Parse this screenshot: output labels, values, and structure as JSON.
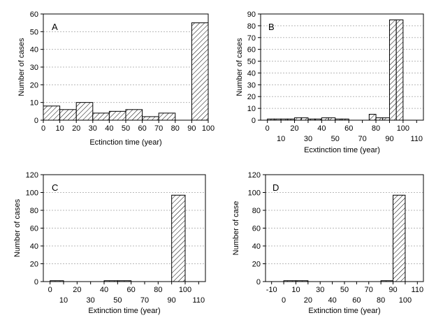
{
  "chart_data": [
    {
      "type": "bar",
      "panel_label": "A",
      "xlabel": "Ectinction time (year)",
      "ylabel": "Number of cases",
      "xlim": [
        0,
        100
      ],
      "ylim": [
        0,
        60
      ],
      "yticks": [
        0,
        10,
        20,
        30,
        40,
        50,
        60
      ],
      "xticks": [
        {
          "value": 0,
          "label": "0",
          "row": 0
        },
        {
          "value": 10,
          "label": "10",
          "row": 0
        },
        {
          "value": 20,
          "label": "20",
          "row": 0
        },
        {
          "value": 30,
          "label": "30",
          "row": 0
        },
        {
          "value": 40,
          "label": "40",
          "row": 0
        },
        {
          "value": 50,
          "label": "50",
          "row": 0
        },
        {
          "value": 60,
          "label": "60",
          "row": 0
        },
        {
          "value": 70,
          "label": "70",
          "row": 0
        },
        {
          "value": 80,
          "label": "80",
          "row": 0
        },
        {
          "value": 90,
          "label": "90",
          "row": 0
        },
        {
          "value": 100,
          "label": "100",
          "row": 0
        }
      ],
      "bins": [
        {
          "start": 0,
          "end": 10,
          "value": 8
        },
        {
          "start": 10,
          "end": 20,
          "value": 6
        },
        {
          "start": 20,
          "end": 30,
          "value": 10
        },
        {
          "start": 30,
          "end": 40,
          "value": 4
        },
        {
          "start": 40,
          "end": 50,
          "value": 5
        },
        {
          "start": 50,
          "end": 60,
          "value": 6
        },
        {
          "start": 60,
          "end": 70,
          "value": 2
        },
        {
          "start": 70,
          "end": 80,
          "value": 4
        },
        {
          "start": 80,
          "end": 90,
          "value": 0
        },
        {
          "start": 90,
          "end": 100,
          "value": 55
        }
      ],
      "grid": true
    },
    {
      "type": "bar",
      "panel_label": "B",
      "xlabel": "Ecxtinction time (year)",
      "ylabel": "Number of cases",
      "xlim": [
        -5,
        115
      ],
      "ylim": [
        0,
        90
      ],
      "yticks": [
        0,
        10,
        20,
        30,
        40,
        50,
        60,
        70,
        80,
        90
      ],
      "xticks": [
        {
          "value": 0,
          "label": "0",
          "row": 0
        },
        {
          "value": 10,
          "label": "10",
          "row": 1
        },
        {
          "value": 20,
          "label": "20",
          "row": 0
        },
        {
          "value": 30,
          "label": "30",
          "row": 1
        },
        {
          "value": 40,
          "label": "40",
          "row": 0
        },
        {
          "value": 50,
          "label": "50",
          "row": 1
        },
        {
          "value": 60,
          "label": "60",
          "row": 0
        },
        {
          "value": 70,
          "label": "70",
          "row": 1
        },
        {
          "value": 80,
          "label": "80",
          "row": 0
        },
        {
          "value": 90,
          "label": "90",
          "row": 1
        },
        {
          "value": 100,
          "label": "100",
          "row": 0
        },
        {
          "value": 110,
          "label": "110",
          "row": 1
        }
      ],
      "bins": [
        {
          "start": 0,
          "end": 5,
          "value": 1
        },
        {
          "start": 5,
          "end": 10,
          "value": 1
        },
        {
          "start": 10,
          "end": 15,
          "value": 1
        },
        {
          "start": 15,
          "end": 20,
          "value": 1
        },
        {
          "start": 20,
          "end": 25,
          "value": 2
        },
        {
          "start": 25,
          "end": 30,
          "value": 2
        },
        {
          "start": 30,
          "end": 35,
          "value": 1
        },
        {
          "start": 35,
          "end": 40,
          "value": 1
        },
        {
          "start": 40,
          "end": 45,
          "value": 2
        },
        {
          "start": 45,
          "end": 50,
          "value": 2
        },
        {
          "start": 50,
          "end": 55,
          "value": 1
        },
        {
          "start": 55,
          "end": 60,
          "value": 1
        },
        {
          "start": 60,
          "end": 65,
          "value": 0
        },
        {
          "start": 65,
          "end": 70,
          "value": 0
        },
        {
          "start": 70,
          "end": 75,
          "value": 0
        },
        {
          "start": 75,
          "end": 80,
          "value": 5
        },
        {
          "start": 80,
          "end": 85,
          "value": 2
        },
        {
          "start": 85,
          "end": 90,
          "value": 2
        },
        {
          "start": 90,
          "end": 95,
          "value": 85
        },
        {
          "start": 95,
          "end": 100,
          "value": 85
        }
      ],
      "grid": true
    },
    {
      "type": "bar",
      "panel_label": "C",
      "xlabel": "Extinction time (year)",
      "ylabel": "Number of cases",
      "xlim": [
        -5,
        115
      ],
      "ylim": [
        0,
        120
      ],
      "yticks": [
        0,
        20,
        40,
        60,
        80,
        100,
        120
      ],
      "xticks": [
        {
          "value": 0,
          "label": "0",
          "row": 0
        },
        {
          "value": 10,
          "label": "10",
          "row": 1
        },
        {
          "value": 20,
          "label": "20",
          "row": 0
        },
        {
          "value": 30,
          "label": "30",
          "row": 1
        },
        {
          "value": 40,
          "label": "40",
          "row": 0
        },
        {
          "value": 50,
          "label": "50",
          "row": 1
        },
        {
          "value": 60,
          "label": "60",
          "row": 0
        },
        {
          "value": 70,
          "label": "70",
          "row": 1
        },
        {
          "value": 80,
          "label": "80",
          "row": 0
        },
        {
          "value": 90,
          "label": "90",
          "row": 1
        },
        {
          "value": 100,
          "label": "100",
          "row": 0
        },
        {
          "value": 110,
          "label": "110",
          "row": 1
        }
      ],
      "bins": [
        {
          "start": 0,
          "end": 10,
          "value": 1
        },
        {
          "start": 40,
          "end": 50,
          "value": 1
        },
        {
          "start": 50,
          "end": 60,
          "value": 1
        },
        {
          "start": 90,
          "end": 100,
          "value": 97
        }
      ],
      "grid": true
    },
    {
      "type": "bar",
      "panel_label": "D",
      "xlabel": "Extinction time (year)",
      "ylabel": "Number of case",
      "xlim": [
        -15,
        115
      ],
      "ylim": [
        0,
        120
      ],
      "yticks": [
        0,
        20,
        40,
        60,
        80,
        100,
        120
      ],
      "xticks": [
        {
          "value": -10,
          "label": "-10",
          "row": 0
        },
        {
          "value": 0,
          "label": "0",
          "row": 1
        },
        {
          "value": 10,
          "label": "10",
          "row": 0
        },
        {
          "value": 20,
          "label": "20",
          "row": 1
        },
        {
          "value": 30,
          "label": "30",
          "row": 0
        },
        {
          "value": 40,
          "label": "40",
          "row": 1
        },
        {
          "value": 50,
          "label": "50",
          "row": 0
        },
        {
          "value": 60,
          "label": "60",
          "row": 1
        },
        {
          "value": 70,
          "label": "70",
          "row": 0
        },
        {
          "value": 80,
          "label": "80",
          "row": 1
        },
        {
          "value": 90,
          "label": "90",
          "row": 0
        },
        {
          "value": 100,
          "label": "100",
          "row": 1
        },
        {
          "value": 110,
          "label": "110",
          "row": 0
        }
      ],
      "bins": [
        {
          "start": 0,
          "end": 10,
          "value": 1
        },
        {
          "start": 10,
          "end": 20,
          "value": 1
        },
        {
          "start": 80,
          "end": 90,
          "value": 1
        },
        {
          "start": 90,
          "end": 100,
          "value": 97
        }
      ],
      "grid": true
    }
  ]
}
